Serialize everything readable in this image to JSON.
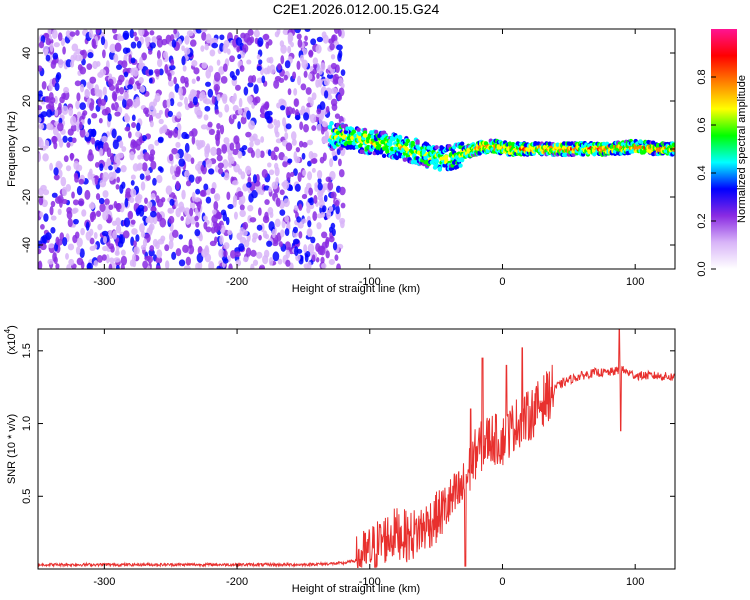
{
  "title": "C2E1.2026.012.00.15.G24",
  "chart_data": [
    {
      "type": "heatmap",
      "name": "spectrogram",
      "xlabel": "Height of straight line (km)",
      "ylabel": "Frequency (Hz)",
      "xlim": [
        -350,
        130
      ],
      "ylim": [
        -50,
        50
      ],
      "xticks": [
        -300,
        -200,
        -100,
        0,
        100
      ],
      "xtick_labels": [
        "-300",
        "-200",
        "-100",
        "0",
        "100"
      ],
      "yticks": [
        -40,
        -20,
        0,
        20,
        40
      ],
      "ytick_labels": [
        "-40",
        "-20",
        "0",
        "20",
        "40"
      ],
      "colorbar": {
        "label": "Normalized spectral amplitude",
        "range": [
          0,
          1
        ],
        "ticks": [
          0.0,
          0.2,
          0.4,
          0.6,
          0.8
        ],
        "tick_labels": [
          "0.0",
          "0.2",
          "0.4",
          "0.6",
          "0.8"
        ],
        "colors": [
          "#ffffff",
          "#d8b4f8",
          "#8a2be2",
          "#0000ff",
          "#00ffff",
          "#00ff00",
          "#ffff00",
          "#ff8000",
          "#ff0000",
          "#ff1493"
        ]
      },
      "ridge": {
        "description_points_x": [
          -130,
          -100,
          -80,
          -65,
          -55,
          -45,
          -35,
          -25,
          -15,
          -5,
          5,
          20,
          40,
          60,
          80,
          100,
          120
        ],
        "description_points_y": [
          6,
          3,
          1,
          -1,
          -3,
          -4,
          -3,
          -1,
          1,
          1,
          0,
          0,
          0,
          0,
          0,
          1,
          0
        ]
      }
    },
    {
      "type": "line",
      "name": "snr",
      "xlabel": "Height of straight line (km)",
      "ylabel": "SNR (10 * v/v)",
      "scale_label": "(x10",
      "scale_exponent": "4",
      "xlim": [
        -350,
        130
      ],
      "ylim": [
        0,
        1.65
      ],
      "xticks": [
        -300,
        -200,
        -100,
        0,
        100
      ],
      "xtick_labels": [
        "-300",
        "-200",
        "-100",
        "0",
        "100"
      ],
      "yticks": [
        0.5,
        1.0,
        1.5
      ],
      "ytick_labels": [
        "0.5",
        "1.0",
        "1.5"
      ],
      "color": "#e8302e",
      "x": [
        -350,
        -300,
        -250,
        -200,
        -150,
        -120,
        -110,
        -100,
        -90,
        -80,
        -70,
        -60,
        -50,
        -40,
        -30,
        -20,
        -10,
        0,
        10,
        20,
        30,
        40,
        50,
        60,
        70,
        80,
        90,
        100,
        110,
        130
      ],
      "y": [
        0.03,
        0.03,
        0.03,
        0.03,
        0.03,
        0.04,
        0.06,
        0.12,
        0.2,
        0.25,
        0.22,
        0.28,
        0.35,
        0.45,
        0.55,
        0.8,
        0.9,
        0.88,
        1.0,
        1.05,
        1.15,
        1.25,
        1.3,
        1.33,
        1.35,
        1.35,
        1.37,
        1.33,
        1.33,
        1.32
      ],
      "spikes": [
        {
          "x": -28,
          "y": 0.02
        },
        {
          "x": -24,
          "y": 1.1
        },
        {
          "x": -15,
          "y": 1.45
        },
        {
          "x": 3,
          "y": 1.4
        },
        {
          "x": 15,
          "y": 1.52
        },
        {
          "x": 88,
          "y": 1.65
        },
        {
          "x": 89,
          "y": 0.95
        }
      ]
    }
  ]
}
